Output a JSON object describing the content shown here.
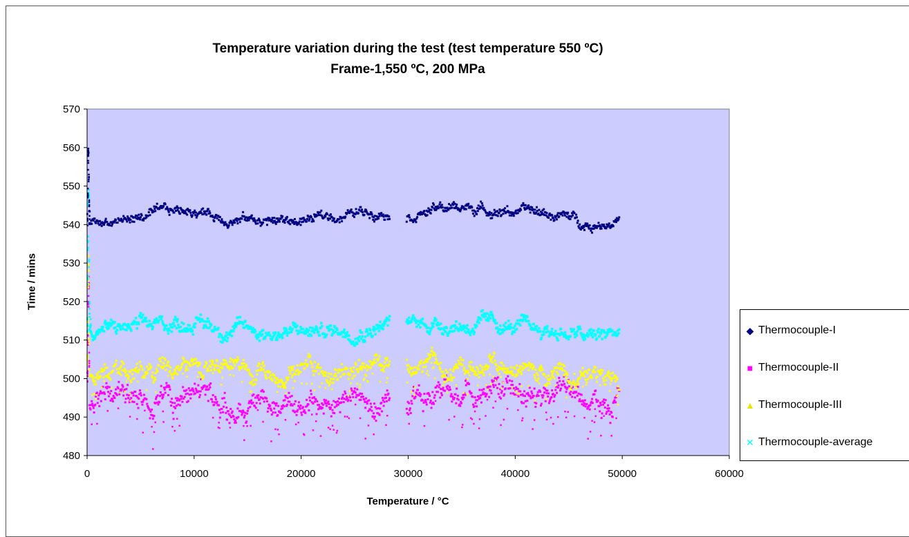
{
  "chart_data": {
    "type": "scatter",
    "title": "Temperature variation during the test (test temperature 550 ºC)",
    "subtitle": "Frame-1,550 ºC, 200 MPa",
    "xlabel": "Temperature / °C",
    "ylabel": "Time / mins",
    "xlim": [
      0,
      60000
    ],
    "ylim": [
      480,
      570
    ],
    "xticks": [
      "0",
      "10000",
      "20000",
      "30000",
      "40000",
      "50000",
      "60000"
    ],
    "yticks": [
      "480",
      "490",
      "500",
      "510",
      "520",
      "530",
      "540",
      "550",
      "560",
      "570"
    ],
    "plot_background": "#ccccff",
    "grid": false,
    "legend_position": "right",
    "gap": [
      28300,
      29800
    ],
    "series": [
      {
        "name": "Thermocouple-I",
        "color": "#000080",
        "marker": "diamond",
        "startup": [
          [
            0,
            541
          ],
          [
            30,
            548
          ],
          [
            60,
            556
          ],
          [
            90,
            558
          ],
          [
            120,
            552
          ],
          [
            150,
            545
          ],
          [
            200,
            542
          ]
        ],
        "x": [
          0,
          2500,
          5000,
          7500,
          10000,
          12500,
          15000,
          17500,
          20000,
          22500,
          25000,
          28000,
          30000,
          32500,
          35000,
          37500,
          40000,
          42500,
          45000,
          47000,
          49700
        ],
        "y": [
          540,
          541,
          542,
          543,
          544,
          542,
          541.5,
          541,
          541,
          542,
          543,
          544,
          543,
          544,
          544.5,
          544,
          543.5,
          543,
          542,
          540,
          541.5
        ],
        "spread": 1.2
      },
      {
        "name": "Thermocouple-II",
        "color": "#ff00ff",
        "marker": "square",
        "startup": [
          [
            0,
            500
          ],
          [
            40,
            510
          ],
          [
            80,
            520
          ],
          [
            120,
            525
          ],
          [
            160,
            505
          ]
        ],
        "x": [
          0,
          2500,
          5000,
          7500,
          10000,
          12500,
          15000,
          17500,
          20000,
          22500,
          25000,
          28000,
          30000,
          32500,
          35000,
          37500,
          40000,
          42500,
          45000,
          47000,
          49700
        ],
        "y": [
          495,
          495,
          494,
          496,
          496,
          494,
          494,
          493,
          494,
          495,
          494,
          496,
          496,
          497,
          496,
          496,
          495,
          494,
          494,
          492,
          493
        ],
        "spread": 3.0
      },
      {
        "name": "Thermocouple-III",
        "color": "#ffff00",
        "marker": "triangle",
        "startup": [
          [
            0,
            505
          ],
          [
            40,
            515
          ],
          [
            80,
            525
          ],
          [
            120,
            530
          ],
          [
            160,
            510
          ]
        ],
        "x": [
          0,
          2500,
          5000,
          7500,
          10000,
          12500,
          15000,
          17500,
          20000,
          22500,
          25000,
          28000,
          30000,
          32500,
          35000,
          37500,
          40000,
          42500,
          45000,
          47000,
          49700
        ],
        "y": [
          503,
          503,
          503,
          504,
          504,
          503,
          503,
          502,
          502,
          502.5,
          503,
          504,
          503,
          503.5,
          503,
          503,
          502,
          502,
          501,
          500,
          502
        ],
        "spread": 2.2
      },
      {
        "name": "Thermocouple-average",
        "color": "#00ffff",
        "marker": "x",
        "startup": [
          [
            0,
            514
          ],
          [
            30,
            525
          ],
          [
            60,
            535
          ],
          [
            90,
            546
          ],
          [
            120,
            548
          ],
          [
            150,
            530
          ],
          [
            200,
            518
          ],
          [
            300,
            514
          ]
        ],
        "x": [
          0,
          2500,
          5000,
          7500,
          10000,
          12500,
          15000,
          17500,
          20000,
          22500,
          25000,
          28000,
          30000,
          32500,
          35000,
          37500,
          40000,
          42500,
          45000,
          47000,
          49700
        ],
        "y": [
          513,
          513,
          513,
          514,
          515,
          513,
          513,
          512,
          512,
          512.5,
          513,
          514.5,
          514,
          514.5,
          514,
          514,
          513,
          512.5,
          512,
          510.5,
          512
        ],
        "spread": 1.8
      }
    ]
  }
}
